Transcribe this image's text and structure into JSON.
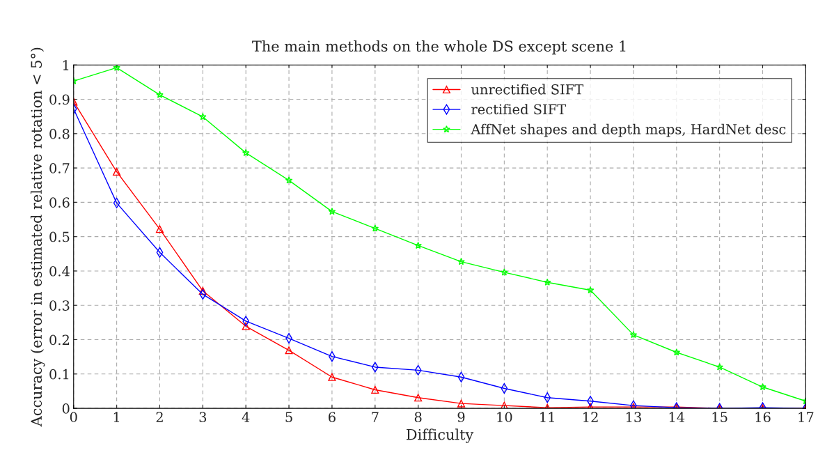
{
  "chart_data": {
    "type": "line",
    "title": "The main methods on the whole DS except scene 1",
    "xlabel": "Difficulty",
    "ylabel": "Accuracy (error in estimated relative rotation < 5°)",
    "x": [
      0,
      1,
      2,
      3,
      4,
      5,
      6,
      7,
      8,
      9,
      10,
      11,
      12,
      13,
      14,
      15,
      16,
      17
    ],
    "series": [
      {
        "name": "unrectified SIFT",
        "color": "#ff0000",
        "marker": "triangle",
        "values": [
          0.893,
          0.689,
          0.522,
          0.342,
          0.239,
          0.169,
          0.091,
          0.054,
          0.031,
          0.014,
          0.008,
          0.002,
          0.004,
          0.004,
          0.004,
          0,
          0,
          0
        ]
      },
      {
        "name": "rectified SIFT",
        "color": "#0000ff",
        "marker": "diamond",
        "values": [
          0.872,
          0.598,
          0.454,
          0.332,
          0.254,
          0.204,
          0.151,
          0.12,
          0.111,
          0.091,
          0.058,
          0.031,
          0.021,
          0.008,
          0.002,
          0,
          0.002,
          0
        ]
      },
      {
        "name": "AffNet shapes and depth maps, HardNet desc",
        "color": "#00ff00",
        "marker": "star",
        "values": [
          0.953,
          0.992,
          0.913,
          0.849,
          0.744,
          0.664,
          0.573,
          0.524,
          0.474,
          0.427,
          0.396,
          0.367,
          0.344,
          0.214,
          0.163,
          0.12,
          0.062,
          0.021
        ]
      }
    ],
    "xlim": [
      0,
      17
    ],
    "ylim": [
      0,
      1
    ],
    "xticks": [
      0,
      1,
      2,
      3,
      4,
      5,
      6,
      7,
      8,
      9,
      10,
      11,
      12,
      13,
      14,
      15,
      16,
      17
    ],
    "yticks": [
      0,
      0.1,
      0.2,
      0.3,
      0.4,
      0.5,
      0.6,
      0.7,
      0.8,
      0.9,
      1
    ],
    "grid": true,
    "legend": "top right",
    "line_style": "solid"
  }
}
